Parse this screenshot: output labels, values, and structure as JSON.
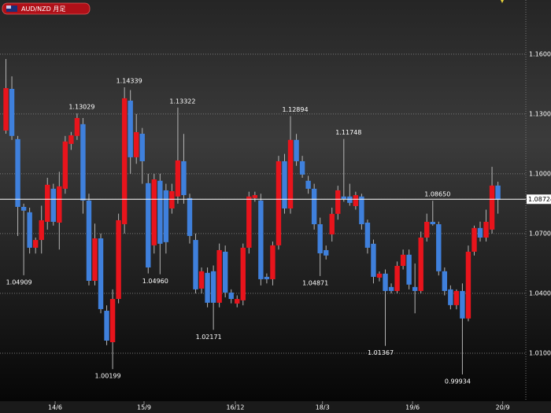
{
  "chart_data": {
    "type": "candlestick",
    "title": "AUD/NZD 月足",
    "up_color": "#e8141c",
    "down_color": "#3f80dc",
    "grid": true,
    "ylim": [
      0.9859,
      1.1872
    ],
    "yticks": [
      {
        "value": 1.16,
        "label": "1.16000"
      },
      {
        "value": 1.13,
        "label": "1.13000"
      },
      {
        "value": 1.1,
        "label": "1.10000"
      },
      {
        "value": 1.07,
        "label": "1.07000"
      },
      {
        "value": 1.04,
        "label": "1.04000"
      },
      {
        "value": 1.01,
        "label": "1.01000"
      }
    ],
    "xlim": [
      -1,
      87.7
    ],
    "xticks": [
      {
        "value": 8.3,
        "label": "14/6"
      },
      {
        "value": 23.3,
        "label": "15/9"
      },
      {
        "value": 38.7,
        "label": "16/12"
      },
      {
        "value": 53.4,
        "label": "18/3"
      },
      {
        "value": 68.6,
        "label": "19/6"
      },
      {
        "value": 83.8,
        "label": "20/9"
      }
    ],
    "current_price": {
      "value": 1.08724,
      "label": "1.08724"
    },
    "ohlc": [
      [
        1.1217,
        1.1576,
        1.1201,
        1.143
      ],
      [
        1.1426,
        1.1489,
        1.117,
        1.119
      ],
      [
        1.1174,
        1.119,
        1.0688,
        1.0834
      ],
      [
        1.0834,
        1.085,
        1.04909,
        1.0815
      ],
      [
        1.0807,
        1.083,
        1.06,
        1.0629
      ],
      [
        1.0629,
        1.068,
        1.06,
        1.0668
      ],
      [
        1.0668,
        1.084,
        1.06,
        1.0767
      ],
      [
        1.0759,
        1.098,
        1.072,
        1.0945
      ],
      [
        1.0925,
        1.095,
        1.074,
        1.0759
      ],
      [
        1.0755,
        1.101,
        1.062,
        1.0937
      ],
      [
        1.0925,
        1.119,
        1.09,
        1.1162
      ],
      [
        1.115,
        1.121,
        1.112,
        1.1193
      ],
      [
        1.119,
        1.13029,
        1.117,
        1.128
      ],
      [
        1.1249,
        1.128,
        1.08,
        1.0866
      ],
      [
        1.0866,
        1.09,
        1.044,
        1.0463
      ],
      [
        1.0463,
        1.075,
        1.044,
        1.0676
      ],
      [
        1.0676,
        1.07,
        1.03,
        1.0321
      ],
      [
        1.0313,
        1.034,
        1.014,
        1.0163
      ],
      [
        1.0155,
        1.042,
        1.00199,
        1.0372
      ],
      [
        1.0372,
        1.08,
        1.035,
        1.0767
      ],
      [
        1.0747,
        1.14339,
        1.07,
        1.1379
      ],
      [
        1.1367,
        1.142,
        1.1,
        1.1083
      ],
      [
        1.1083,
        1.13,
        1.105,
        1.1209
      ],
      [
        1.1201,
        1.123,
        1.095,
        1.1063
      ],
      [
        1.0953,
        1.1,
        1.05,
        1.053
      ],
      [
        1.0641,
        1.1,
        1.06,
        1.0972
      ],
      [
        1.0965,
        1.1,
        1.0496,
        1.0649
      ],
      [
        1.0917,
        1.095,
        1.06,
        1.0657
      ],
      [
        1.0826,
        1.095,
        1.08,
        1.0913
      ],
      [
        1.0886,
        1.13322,
        1.085,
        1.1067
      ],
      [
        1.1063,
        1.12,
        1.085,
        1.0893
      ],
      [
        1.0878,
        1.09,
        1.065,
        1.0688
      ],
      [
        1.0668,
        1.07,
        1.04,
        1.042
      ],
      [
        1.0424,
        1.053,
        1.04,
        1.0511
      ],
      [
        1.0503,
        1.053,
        1.033,
        1.0353
      ],
      [
        1.0511,
        1.054,
        1.02171,
        1.0353
      ],
      [
        1.0353,
        1.065,
        1.033,
        1.0617
      ],
      [
        1.0609,
        1.064,
        1.038,
        1.0404
      ],
      [
        1.0404,
        1.042,
        1.035,
        1.0372
      ],
      [
        1.0349,
        1.039,
        1.033,
        1.0372
      ],
      [
        1.0365,
        1.065,
        1.034,
        1.0629
      ],
      [
        1.0629,
        1.091,
        1.06,
        1.0886
      ],
      [
        1.0878,
        1.091,
        1.086,
        1.0893
      ],
      [
        1.0866,
        1.09,
        1.044,
        1.0471
      ],
      [
        1.0483,
        1.05,
        1.045,
        1.0471
      ],
      [
        1.0471,
        1.066,
        1.044,
        1.0641
      ],
      [
        1.0641,
        1.109,
        1.062,
        1.1063
      ],
      [
        1.1063,
        1.11,
        1.08,
        1.0826
      ],
      [
        1.0826,
        1.12894,
        1.08,
        1.117
      ],
      [
        1.117,
        1.12,
        1.104,
        1.1063
      ],
      [
        1.1063,
        1.109,
        1.098,
        1.0996
      ],
      [
        1.0965,
        1.099,
        1.09,
        1.0925
      ],
      [
        1.0925,
        1.095,
        1.072,
        1.0747
      ],
      [
        1.0747,
        1.078,
        1.04871,
        1.0601
      ],
      [
        1.0617,
        1.064,
        1.057,
        1.059
      ],
      [
        1.0696,
        1.083,
        1.066,
        1.0799
      ],
      [
        1.0799,
        1.094,
        1.077,
        1.0917
      ],
      [
        1.0886,
        1.11748,
        1.086,
        1.0874
      ],
      [
        1.0886,
        1.095,
        1.084,
        1.0854
      ],
      [
        1.0838,
        1.091,
        1.082,
        1.0893
      ],
      [
        1.0886,
        1.09,
        1.072,
        1.0747
      ],
      [
        1.0755,
        1.077,
        1.06,
        1.0629
      ],
      [
        1.0649,
        1.067,
        1.045,
        1.0483
      ],
      [
        1.0479,
        1.051,
        1.046,
        1.0499
      ],
      [
        1.0499,
        1.052,
        1.01367,
        1.0412
      ],
      [
        1.0432,
        1.045,
        1.04,
        1.0412
      ],
      [
        1.0412,
        1.056,
        1.04,
        1.0538
      ],
      [
        1.0538,
        1.062,
        1.052,
        1.0594
      ],
      [
        1.0594,
        1.062,
        1.042,
        1.0444
      ],
      [
        1.0432,
        1.055,
        1.03,
        1.0412
      ],
      [
        1.0412,
        1.071,
        1.04,
        1.068
      ],
      [
        1.068,
        1.08,
        1.066,
        1.0759
      ],
      [
        1.0759,
        1.0865,
        1.074,
        1.0747
      ],
      [
        1.0747,
        1.076,
        1.049,
        1.0511
      ],
      [
        1.0511,
        1.053,
        1.039,
        1.0412
      ],
      [
        1.042,
        1.044,
        1.032,
        1.0341
      ],
      [
        1.0341,
        1.042,
        1.032,
        1.0412
      ],
      [
        1.0412,
        1.045,
        0.99934,
        1.0274
      ],
      [
        1.0274,
        1.064,
        1.026,
        1.0609
      ],
      [
        1.0609,
        1.074,
        1.059,
        1.0728
      ],
      [
        1.0728,
        1.076,
        1.066,
        1.068
      ],
      [
        1.068,
        1.082,
        1.066,
        1.0759
      ],
      [
        1.072,
        1.1035,
        1.07,
        1.0941
      ],
      [
        1.0941,
        1.096,
        1.08,
        1.087
      ]
    ],
    "high_labels": [
      null,
      null,
      null,
      null,
      null,
      null,
      null,
      null,
      null,
      null,
      null,
      null,
      "1.13029",
      null,
      null,
      null,
      null,
      null,
      null,
      null,
      "1.14339",
      null,
      null,
      null,
      null,
      null,
      null,
      null,
      null,
      "1.13322",
      null,
      null,
      null,
      null,
      null,
      null,
      null,
      null,
      null,
      null,
      null,
      null,
      null,
      null,
      null,
      null,
      null,
      null,
      "1.12894",
      null,
      null,
      null,
      null,
      null,
      null,
      null,
      null,
      "1.11748",
      null,
      null,
      null,
      null,
      null,
      null,
      null,
      null,
      null,
      null,
      null,
      null,
      null,
      null,
      "1.08650",
      null,
      null,
      null,
      null,
      null,
      null,
      null,
      null,
      null,
      null,
      null
    ],
    "low_labels": [
      null,
      null,
      null,
      "1.04909",
      null,
      null,
      null,
      null,
      null,
      null,
      null,
      null,
      null,
      null,
      null,
      null,
      null,
      null,
      "1.00199",
      null,
      null,
      null,
      null,
      null,
      null,
      null,
      "1.04960",
      null,
      null,
      null,
      null,
      null,
      null,
      null,
      null,
      "1.02171",
      null,
      null,
      null,
      null,
      null,
      null,
      null,
      null,
      null,
      null,
      null,
      null,
      null,
      null,
      null,
      null,
      null,
      "1.04871",
      null,
      null,
      null,
      null,
      null,
      null,
      null,
      null,
      null,
      null,
      "1.01367",
      null,
      null,
      null,
      null,
      null,
      null,
      null,
      null,
      null,
      null,
      null,
      null,
      "0.99934",
      null,
      null,
      null,
      null,
      null,
      null
    ]
  }
}
